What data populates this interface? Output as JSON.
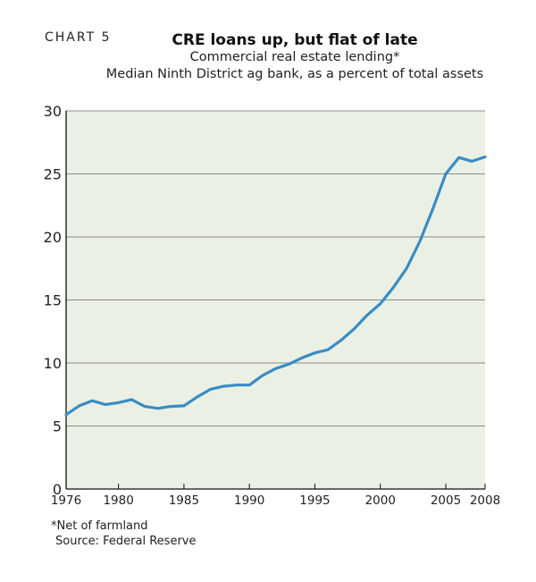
{
  "header": {
    "chart_number": "CHART 5",
    "title": "CRE loans up, but flat of late",
    "subtitle": "Commercial real estate lending*",
    "subtitle2": "Median Ninth District ag bank, as a percent of total assets"
  },
  "footer": {
    "footnote": "*Net of farmland",
    "source": "Source: Federal Reserve"
  },
  "colors": {
    "line": "#3a8cc4",
    "grid": "#8c8c8c",
    "plot_background": "#eaf1e4",
    "axis": "#111111"
  },
  "chart_data": {
    "type": "line",
    "title": "CRE loans up, but flat of late",
    "xlabel": "",
    "ylabel": "",
    "xlim": [
      1976,
      2008
    ],
    "ylim": [
      0,
      30
    ],
    "grid": true,
    "x_ticks": [
      1976,
      1980,
      1985,
      1990,
      1995,
      2000,
      2005,
      2008
    ],
    "y_ticks": [
      0,
      5,
      10,
      15,
      20,
      25,
      30
    ],
    "series": [
      {
        "name": "",
        "x": [
          1976,
          1977,
          1978,
          1979,
          1980,
          1981,
          1982,
          1983,
          1984,
          1985,
          1986,
          1987,
          1988,
          1989,
          1990,
          1991,
          1992,
          1993,
          1994,
          1995,
          1996,
          1997,
          1998,
          1999,
          2000,
          2001,
          2002,
          2003,
          2004,
          2005,
          2006,
          2007,
          2008
        ],
        "values": [
          5.9,
          6.6,
          7.0,
          6.7,
          6.85,
          7.1,
          6.55,
          6.4,
          6.55,
          6.6,
          7.3,
          7.9,
          8.15,
          8.25,
          8.25,
          9.0,
          9.55,
          9.9,
          10.4,
          10.8,
          11.05,
          11.8,
          12.7,
          13.8,
          14.7,
          16.0,
          17.5,
          19.6,
          22.2,
          25.0,
          26.3,
          26.0,
          26.35
        ]
      }
    ]
  }
}
